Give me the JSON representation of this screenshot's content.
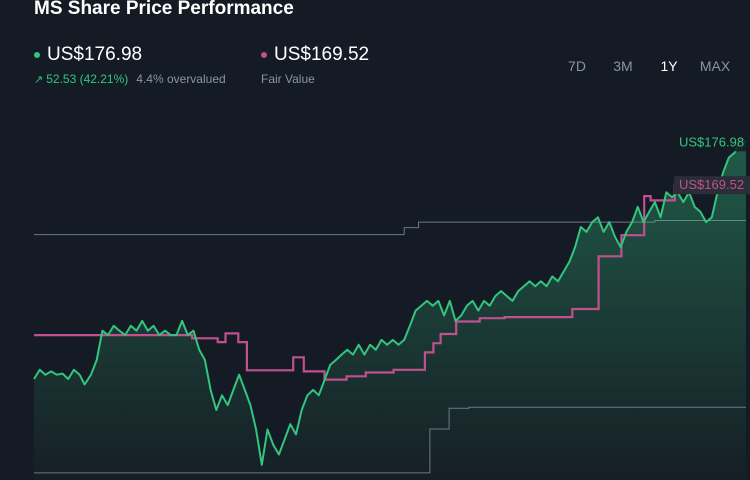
{
  "header": {
    "title": "MS Share Price Performance"
  },
  "legend": {
    "price": {
      "value": "US$176.98",
      "change": "52.53 (42.21%)",
      "note": "4.4% overvalued",
      "color": "#33c580"
    },
    "fair": {
      "value": "US$169.52",
      "note": "Fair Value",
      "color": "#c0508e"
    }
  },
  "periods": [
    "7D",
    "3M",
    "1Y",
    "MAX"
  ],
  "active_period": "1Y",
  "chart_data": {
    "type": "line",
    "ylim": [
      115,
      185
    ],
    "x_range": [
      0,
      100
    ],
    "series": [
      {
        "name": "Share Price",
        "color": "#33c580",
        "end_label": "US$176.98",
        "points": [
          [
            0,
            133.6
          ],
          [
            0.8,
            135.3
          ],
          [
            1.6,
            134.4
          ],
          [
            2.4,
            135.0
          ],
          [
            3.2,
            134.4
          ],
          [
            4.0,
            134.6
          ],
          [
            4.8,
            133.6
          ],
          [
            5.6,
            135.3
          ],
          [
            6.4,
            134.4
          ],
          [
            7.1,
            132.6
          ],
          [
            8.0,
            134.4
          ],
          [
            8.8,
            137.1
          ],
          [
            9.6,
            142.5
          ],
          [
            10.4,
            141.7
          ],
          [
            11.2,
            143.4
          ],
          [
            12.0,
            142.5
          ],
          [
            12.8,
            141.7
          ],
          [
            13.6,
            143.4
          ],
          [
            14.4,
            142.5
          ],
          [
            15.2,
            144.3
          ],
          [
            16.0,
            142.5
          ],
          [
            16.8,
            143.4
          ],
          [
            17.6,
            141.7
          ],
          [
            18.4,
            142.5
          ],
          [
            19.2,
            141.7
          ],
          [
            20.0,
            141.7
          ],
          [
            20.8,
            144.3
          ],
          [
            21.6,
            141.7
          ],
          [
            22.4,
            142.5
          ],
          [
            23.2,
            139.0
          ],
          [
            24.0,
            137.1
          ],
          [
            24.8,
            131.6
          ],
          [
            25.6,
            127.9
          ],
          [
            26.4,
            130.6
          ],
          [
            27.2,
            128.8
          ],
          [
            28.0,
            131.6
          ],
          [
            28.8,
            134.4
          ],
          [
            29.6,
            131.6
          ],
          [
            30.4,
            128.8
          ],
          [
            31.2,
            124.3
          ],
          [
            32.0,
            117.8
          ],
          [
            32.8,
            124.3
          ],
          [
            33.6,
            121.5
          ],
          [
            34.4,
            119.7
          ],
          [
            35.2,
            122.5
          ],
          [
            36.0,
            125.3
          ],
          [
            36.8,
            123.4
          ],
          [
            37.6,
            127.9
          ],
          [
            38.4,
            130.6
          ],
          [
            39.2,
            131.6
          ],
          [
            40.0,
            130.6
          ],
          [
            40.8,
            133.4
          ],
          [
            41.6,
            136.2
          ],
          [
            42.4,
            137.1
          ],
          [
            43.2,
            138.1
          ],
          [
            44.0,
            139.0
          ],
          [
            44.8,
            138.1
          ],
          [
            45.6,
            139.9
          ],
          [
            46.4,
            138.1
          ],
          [
            47.2,
            139.9
          ],
          [
            48.0,
            139.0
          ],
          [
            48.8,
            140.8
          ],
          [
            49.6,
            139.9
          ],
          [
            50.4,
            140.8
          ],
          [
            51.2,
            139.9
          ],
          [
            52.0,
            140.8
          ],
          [
            52.8,
            143.4
          ],
          [
            53.6,
            146.2
          ],
          [
            54.4,
            147.1
          ],
          [
            55.2,
            148.0
          ],
          [
            56.0,
            147.1
          ],
          [
            56.8,
            148.0
          ],
          [
            57.6,
            145.3
          ],
          [
            58.4,
            148.0
          ],
          [
            59.2,
            144.3
          ],
          [
            60.0,
            145.3
          ],
          [
            60.8,
            147.1
          ],
          [
            61.6,
            148.0
          ],
          [
            62.4,
            146.2
          ],
          [
            63.2,
            148.0
          ],
          [
            64.0,
            147.1
          ],
          [
            64.8,
            148.9
          ],
          [
            65.6,
            149.8
          ],
          [
            66.4,
            148.9
          ],
          [
            67.2,
            148.0
          ],
          [
            68.0,
            149.8
          ],
          [
            68.8,
            150.7
          ],
          [
            69.6,
            151.6
          ],
          [
            70.4,
            150.7
          ],
          [
            71.2,
            151.6
          ],
          [
            72.0,
            150.7
          ],
          [
            72.8,
            152.5
          ],
          [
            73.6,
            151.6
          ],
          [
            74.4,
            153.4
          ],
          [
            75.2,
            155.2
          ],
          [
            76.0,
            157.9
          ],
          [
            76.8,
            161.6
          ],
          [
            77.6,
            160.7
          ],
          [
            78.4,
            162.5
          ],
          [
            79.2,
            163.4
          ],
          [
            80.0,
            160.7
          ],
          [
            80.8,
            162.5
          ],
          [
            81.6,
            159.8
          ],
          [
            82.4,
            157.9
          ],
          [
            83.2,
            160.7
          ],
          [
            84.0,
            162.5
          ],
          [
            84.8,
            165.3
          ],
          [
            85.6,
            162.5
          ],
          [
            86.4,
            164.4
          ],
          [
            87.2,
            166.2
          ],
          [
            88.0,
            163.4
          ],
          [
            88.8,
            168.0
          ],
          [
            89.6,
            167.1
          ],
          [
            90.4,
            168.0
          ],
          [
            91.2,
            166.2
          ],
          [
            92.0,
            168.0
          ],
          [
            92.8,
            165.3
          ],
          [
            93.6,
            164.4
          ],
          [
            94.4,
            162.5
          ],
          [
            95.2,
            163.4
          ],
          [
            96.0,
            168.0
          ],
          [
            96.8,
            171.7
          ],
          [
            97.6,
            174.4
          ],
          [
            98.4,
            175.3
          ],
          [
            99.2,
            178.0
          ],
          [
            100,
            177.2
          ]
        ]
      },
      {
        "name": "Fair Value",
        "color": "#c0508e",
        "end_label": "US$169.52",
        "points": [
          [
            0,
            141.7
          ],
          [
            22.2,
            141.7
          ],
          [
            22.2,
            141.1
          ],
          [
            25.8,
            141.1
          ],
          [
            25.8,
            140.4
          ],
          [
            26.9,
            140.4
          ],
          [
            26.9,
            142.0
          ],
          [
            28.7,
            142.0
          ],
          [
            28.7,
            140.4
          ],
          [
            29.9,
            140.4
          ],
          [
            29.9,
            135.2
          ],
          [
            36.4,
            135.2
          ],
          [
            36.4,
            137.6
          ],
          [
            37.9,
            137.6
          ],
          [
            37.9,
            135.0
          ],
          [
            40.8,
            135.0
          ],
          [
            40.8,
            133.5
          ],
          [
            43.9,
            133.5
          ],
          [
            43.9,
            134.1
          ],
          [
            46.6,
            134.1
          ],
          [
            46.6,
            134.8
          ],
          [
            50.5,
            134.8
          ],
          [
            50.5,
            135.3
          ],
          [
            54.9,
            135.3
          ],
          [
            54.9,
            138.5
          ],
          [
            56.1,
            138.5
          ],
          [
            56.1,
            140.2
          ],
          [
            57.1,
            140.2
          ],
          [
            57.1,
            141.9
          ],
          [
            59.3,
            141.9
          ],
          [
            59.3,
            144.2
          ],
          [
            62.6,
            144.2
          ],
          [
            62.6,
            144.8
          ],
          [
            66.1,
            144.8
          ],
          [
            66.1,
            145.0
          ],
          [
            75.6,
            145.0
          ],
          [
            75.6,
            146.5
          ],
          [
            79.3,
            146.5
          ],
          [
            79.3,
            156.2
          ],
          [
            82.5,
            156.2
          ],
          [
            82.5,
            160.1
          ],
          [
            85.7,
            160.1
          ],
          [
            85.7,
            167.3
          ],
          [
            86.6,
            167.3
          ],
          [
            86.6,
            166.5
          ],
          [
            90.0,
            166.5
          ],
          [
            90.0,
            169.3
          ],
          [
            100,
            169.3
          ]
        ]
      }
    ],
    "ref_lines": [
      {
        "name": "upper-band",
        "points": [
          [
            0,
            160.2
          ],
          [
            52.0,
            160.2
          ],
          [
            52.0,
            161.5
          ],
          [
            54.0,
            161.5
          ],
          [
            54.0,
            162.5
          ],
          [
            87.2,
            162.5
          ],
          [
            87.2,
            162.8
          ],
          [
            100,
            162.8
          ]
        ]
      },
      {
        "name": "lower-band",
        "points": [
          [
            0,
            116.3
          ],
          [
            55.6,
            116.3
          ],
          [
            55.6,
            124.4
          ],
          [
            58.3,
            124.4
          ],
          [
            58.3,
            128.2
          ],
          [
            61.1,
            128.2
          ],
          [
            61.1,
            128.4
          ],
          [
            100,
            128.4
          ]
        ]
      }
    ]
  }
}
